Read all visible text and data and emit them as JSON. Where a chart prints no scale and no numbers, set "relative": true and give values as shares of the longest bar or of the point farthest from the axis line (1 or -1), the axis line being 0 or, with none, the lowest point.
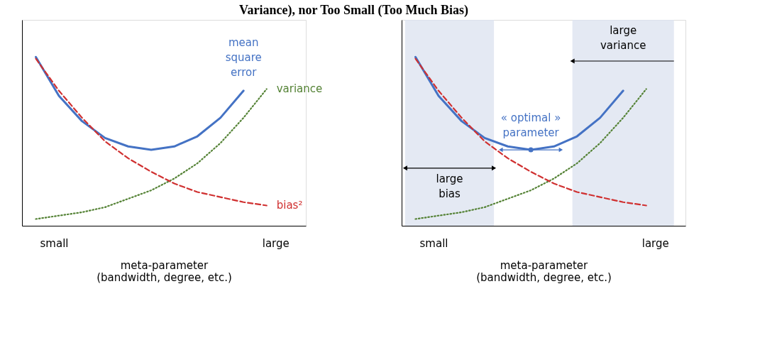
{
  "chart_data": [
    {
      "type": "line",
      "title": "Variance), nor Too Small (Too Much Bias)",
      "xlabel": "meta-parameter\n(bandwidth, degree, etc.)",
      "relative": true,
      "grid": false,
      "legend": false,
      "categories": [
        null,
        null,
        null,
        null,
        null,
        null,
        null,
        null,
        null,
        null,
        null
      ],
      "annotations": [
        "small",
        "large"
      ],
      "series": [
        {
          "name": "mean square error",
          "color": "#4472c4",
          "line_style": "solid",
          "values": [
            1.0,
            0.77,
            0.62,
            0.52,
            0.47,
            0.45,
            0.47,
            0.53,
            0.64,
            0.8,
            null
          ]
        },
        {
          "name": "variance",
          "color": "#548235",
          "line_style": "dotted",
          "values": [
            0.04,
            0.06,
            0.08,
            0.11,
            0.16,
            0.21,
            0.28,
            0.37,
            0.49,
            0.64,
            0.81
          ]
        },
        {
          "name": "bias²",
          "color": "#d03030",
          "line_style": "dashed",
          "values": [
            0.99,
            0.8,
            0.64,
            0.5,
            0.4,
            0.32,
            0.25,
            0.2,
            0.17,
            0.14,
            0.12
          ]
        }
      ]
    },
    {
      "type": "line",
      "xlabel": "meta-parameter\n(bandwidth, degree, etc.)",
      "relative": true,
      "grid": false,
      "legend": false,
      "categories": [
        null,
        null,
        null,
        null,
        null,
        null,
        null,
        null,
        null,
        null,
        null
      ],
      "series": [
        {
          "color": "#4472c4",
          "line_style": "solid",
          "values": [
            1.0,
            0.77,
            0.62,
            0.52,
            0.47,
            0.45,
            0.47,
            0.53,
            0.64,
            0.8,
            null
          ]
        },
        {
          "color": "#548235",
          "line_style": "dotted",
          "values": [
            0.04,
            0.06,
            0.08,
            0.11,
            0.16,
            0.21,
            0.28,
            0.37,
            0.49,
            0.64,
            0.81
          ]
        },
        {
          "color": "#d03030",
          "line_style": "dashed",
          "values": [
            0.99,
            0.8,
            0.64,
            0.5,
            0.4,
            0.32,
            0.25,
            0.2,
            0.17,
            0.14,
            0.12
          ]
        }
      ],
      "annotations": [
        "small",
        "large",
        "large\nbias",
        "large\nvariance",
        {
          "text": "« optimal »\nparameter",
          "y": 0.45
        }
      ]
    }
  ]
}
